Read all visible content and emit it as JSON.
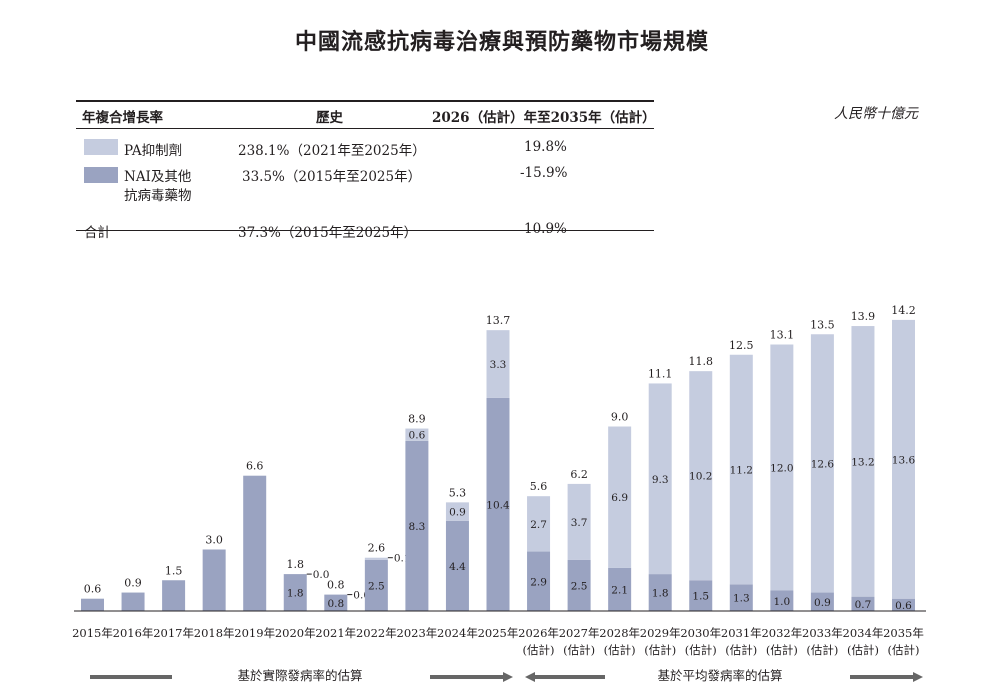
{
  "title": "中國流感抗病毒治療與預防藥物市場規模",
  "unit": "人民幣十億元",
  "cagr_table": {
    "headers": [
      "年複合增長率",
      "歷史",
      "2026（估計）年至2035年（估計）"
    ],
    "rows": [
      {
        "label": "PA抑制劑",
        "historical": "238.1%（2021年至2025年）",
        "forecast": "19.8%",
        "color": "#c5ccdf"
      },
      {
        "label_line1": "NAI及其他",
        "label_line2": "抗病毒藥物",
        "historical": "33.5%（2015年至2025年）",
        "forecast": "-15.9%",
        "color": "#9aa3c1"
      },
      {
        "label": "合計",
        "historical": "37.3%（2015年至2025年）",
        "forecast": "10.9%"
      }
    ]
  },
  "footer": {
    "actual_label": "基於實際發病率的估算",
    "avg_label": "基於平均發病率的估算"
  },
  "chart_data": {
    "type": "bar",
    "stacked": true,
    "categories": [
      "2015年",
      "2016年",
      "2017年",
      "2018年",
      "2019年",
      "2020年",
      "2021年",
      "2022年",
      "2023年",
      "2024年",
      "2025年",
      "2026年",
      "2027年",
      "2028年",
      "2029年",
      "2030年",
      "2031年",
      "2032年",
      "2033年",
      "2034年",
      "2035年"
    ],
    "category_sublabels": [
      "",
      "",
      "",
      "",
      "",
      "",
      "",
      "",
      "",
      "",
      "",
      "(估計)",
      "(估計)",
      "(估計)",
      "(估計)",
      "(估計)",
      "(估計)",
      "(估計)",
      "(估計)",
      "(估計)",
      "(估計)"
    ],
    "series": [
      {
        "name": "NAI及其他抗病毒藥物",
        "color": "#9aa3c1",
        "values": [
          0.6,
          0.9,
          1.5,
          3.0,
          6.6,
          1.8,
          0.8,
          2.5,
          8.3,
          4.4,
          10.4,
          2.9,
          2.5,
          2.1,
          1.8,
          1.5,
          1.3,
          1.0,
          0.9,
          0.7,
          0.6
        ]
      },
      {
        "name": "PA抑制劑",
        "color": "#c5ccdf",
        "values": [
          0,
          0,
          0,
          0,
          0,
          0.0,
          0.0,
          0.1,
          0.6,
          0.9,
          3.3,
          2.7,
          3.7,
          6.9,
          9.3,
          10.2,
          11.2,
          12.0,
          12.6,
          13.2,
          13.6
        ]
      }
    ],
    "totals": [
      "0.6",
      "0.9",
      "1.5",
      "3.0",
      "6.6",
      "1.8",
      "0.8",
      "2.6",
      "8.9",
      "5.3",
      "13.7",
      "5.6",
      "6.2",
      "9.0",
      "11.1",
      "11.8",
      "12.5",
      "13.1",
      "13.5",
      "13.9",
      "14.2"
    ],
    "segment_labels": [
      [
        "",
        ""
      ],
      [
        "",
        ""
      ],
      [
        "",
        ""
      ],
      [
        "",
        ""
      ],
      [
        "",
        ""
      ],
      [
        "1.8",
        "0.0"
      ],
      [
        "0.8",
        "0.0"
      ],
      [
        "2.5",
        "0.1"
      ],
      [
        "8.3",
        "0.6"
      ],
      [
        "4.4",
        "0.9"
      ],
      [
        "10.4",
        "3.3"
      ],
      [
        "2.9",
        "2.7"
      ],
      [
        "2.5",
        "3.7"
      ],
      [
        "2.1",
        "6.9"
      ],
      [
        "1.8",
        "9.3"
      ],
      [
        "1.5",
        "10.2"
      ],
      [
        "1.3",
        "11.2"
      ],
      [
        "1.0",
        "12.0"
      ],
      [
        "0.9",
        "12.6"
      ],
      [
        "0.7",
        "13.2"
      ],
      [
        "0.6",
        "13.6"
      ]
    ],
    "ylim": [
      0,
      14.2
    ]
  }
}
